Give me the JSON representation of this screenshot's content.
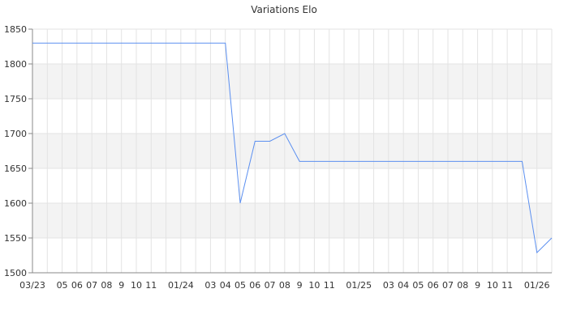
{
  "chart_data": {
    "type": "line",
    "title": "Variations Elo",
    "xlabel": "",
    "ylabel": "",
    "ylim": [
      1500,
      1850
    ],
    "yticks": [
      1500,
      1550,
      1600,
      1650,
      1700,
      1750,
      1800,
      1850
    ],
    "grid": true,
    "line_color": "#5b8ff0",
    "x_months": [
      "2023-03",
      "2023-04",
      "2023-05",
      "2023-06",
      "2023-07",
      "2023-08",
      "2023-09",
      "2023-10",
      "2023-11",
      "2023-12",
      "2024-01",
      "2024-02",
      "2024-03",
      "2024-04",
      "2024-05",
      "2024-06",
      "2024-07",
      "2024-08",
      "2024-09",
      "2024-10",
      "2024-11",
      "2024-12",
      "2025-01",
      "2025-02",
      "2025-03",
      "2025-04",
      "2025-05",
      "2025-06",
      "2025-07",
      "2025-08",
      "2025-09",
      "2025-10",
      "2025-11",
      "2025-12",
      "2026-01",
      "2026-02"
    ],
    "xtick_labels": [
      {
        "month": "2023-03",
        "label": "03/23"
      },
      {
        "month": "2023-05",
        "label": "05"
      },
      {
        "month": "2023-06",
        "label": "06"
      },
      {
        "month": "2023-07",
        "label": "07"
      },
      {
        "month": "2023-08",
        "label": "08"
      },
      {
        "month": "2023-09",
        "label": "9"
      },
      {
        "month": "2023-10",
        "label": "10"
      },
      {
        "month": "2023-11",
        "label": "11"
      },
      {
        "month": "2024-01",
        "label": "01/24"
      },
      {
        "month": "2024-03",
        "label": "03"
      },
      {
        "month": "2024-04",
        "label": "04"
      },
      {
        "month": "2024-05",
        "label": "05"
      },
      {
        "month": "2024-06",
        "label": "06"
      },
      {
        "month": "2024-07",
        "label": "07"
      },
      {
        "month": "2024-08",
        "label": "08"
      },
      {
        "month": "2024-09",
        "label": "9"
      },
      {
        "month": "2024-10",
        "label": "10"
      },
      {
        "month": "2024-11",
        "label": "11"
      },
      {
        "month": "2025-01",
        "label": "01/25"
      },
      {
        "month": "2025-03",
        "label": "03"
      },
      {
        "month": "2025-04",
        "label": "04"
      },
      {
        "month": "2025-05",
        "label": "05"
      },
      {
        "month": "2025-06",
        "label": "06"
      },
      {
        "month": "2025-07",
        "label": "07"
      },
      {
        "month": "2025-08",
        "label": "08"
      },
      {
        "month": "2025-09",
        "label": "9"
      },
      {
        "month": "2025-10",
        "label": "10"
      },
      {
        "month": "2025-11",
        "label": "11"
      },
      {
        "month": "2026-01",
        "label": "01/26"
      }
    ],
    "series": [
      {
        "points": [
          {
            "x": "2023-03",
            "y": 1830
          },
          {
            "x": "2024-04",
            "y": 1830
          },
          {
            "x": "2024-05",
            "y": 1600
          },
          {
            "x": "2024-06",
            "y": 1689
          },
          {
            "x": "2024-07",
            "y": 1689
          },
          {
            "x": "2024-08",
            "y": 1700
          },
          {
            "x": "2024-09",
            "y": 1660
          },
          {
            "x": "2025-12",
            "y": 1660
          },
          {
            "x": "2026-01",
            "y": 1529
          },
          {
            "x": "2026-02",
            "y": 1550
          }
        ]
      }
    ]
  }
}
